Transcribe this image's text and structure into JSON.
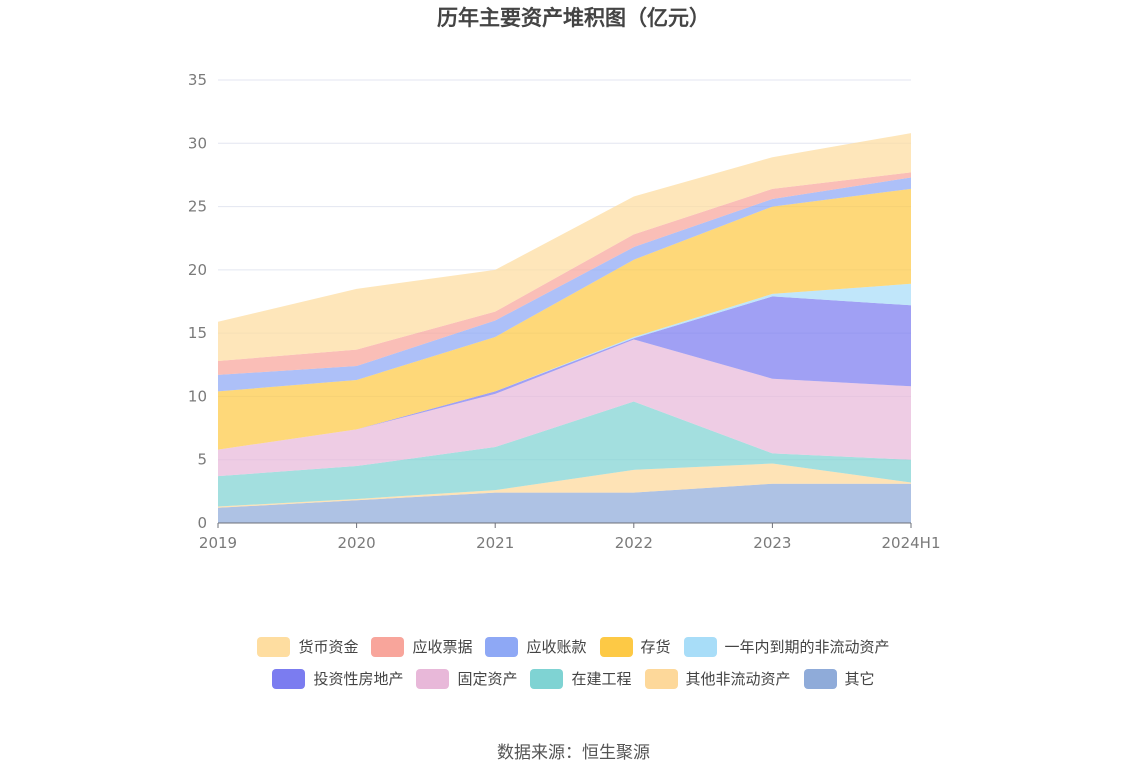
{
  "chart_data": {
    "type": "area",
    "stacked": true,
    "title": "历年主要资产堆积图（亿元）",
    "categories": [
      "2019",
      "2020",
      "2021",
      "2022",
      "2023",
      "2024H1"
    ],
    "ylim": [
      0,
      35
    ],
    "yticks": [
      0,
      5,
      10,
      15,
      20,
      25,
      30,
      35
    ],
    "grid": true,
    "legend_position": "bottom",
    "series": [
      {
        "name": "其它",
        "color": "#8fabd9",
        "values": [
          1.2,
          1.8,
          2.4,
          2.4,
          3.1,
          3.1
        ]
      },
      {
        "name": "其他非流动资产",
        "color": "#fdd89a",
        "values": [
          0.1,
          0.1,
          0.2,
          1.8,
          1.6,
          0.1
        ]
      },
      {
        "name": "在建工程",
        "color": "#7fd3d3",
        "values": [
          2.4,
          2.6,
          3.4,
          5.4,
          0.8,
          1.8
        ]
      },
      {
        "name": "固定资产",
        "color": "#e8b8d9",
        "values": [
          2.1,
          2.9,
          4.2,
          4.9,
          5.9,
          5.8
        ]
      },
      {
        "name": "投资性房地产",
        "color": "#7b7cf0",
        "values": [
          0.0,
          0.0,
          0.2,
          0.1,
          6.5,
          6.4
        ]
      },
      {
        "name": "一年内到期的非流动资产",
        "color": "#a8ddf8",
        "values": [
          0.0,
          0.0,
          0.0,
          0.1,
          0.2,
          1.7
        ]
      },
      {
        "name": "存货",
        "color": "#fdc945",
        "values": [
          4.6,
          3.9,
          4.3,
          6.1,
          6.9,
          7.5
        ]
      },
      {
        "name": "应收账款",
        "color": "#8ea8f5",
        "values": [
          1.3,
          1.1,
          1.3,
          1.0,
          0.6,
          0.9
        ]
      },
      {
        "name": "应收票据",
        "color": "#f8a59b",
        "values": [
          1.1,
          1.3,
          0.7,
          1.0,
          0.8,
          0.4
        ]
      },
      {
        "name": "货币资金",
        "color": "#fedda0",
        "values": [
          3.1,
          4.8,
          3.3,
          3.0,
          2.5,
          3.1
        ]
      }
    ],
    "legend": [
      [
        "货币资金",
        "应收票据",
        "应收账款",
        "存货",
        "一年内到期的非流动资产"
      ],
      [
        "投资性房地产",
        "固定资产",
        "在建工程",
        "其他非流动资产",
        "其它"
      ]
    ]
  },
  "source": "数据来源：恒生聚源"
}
